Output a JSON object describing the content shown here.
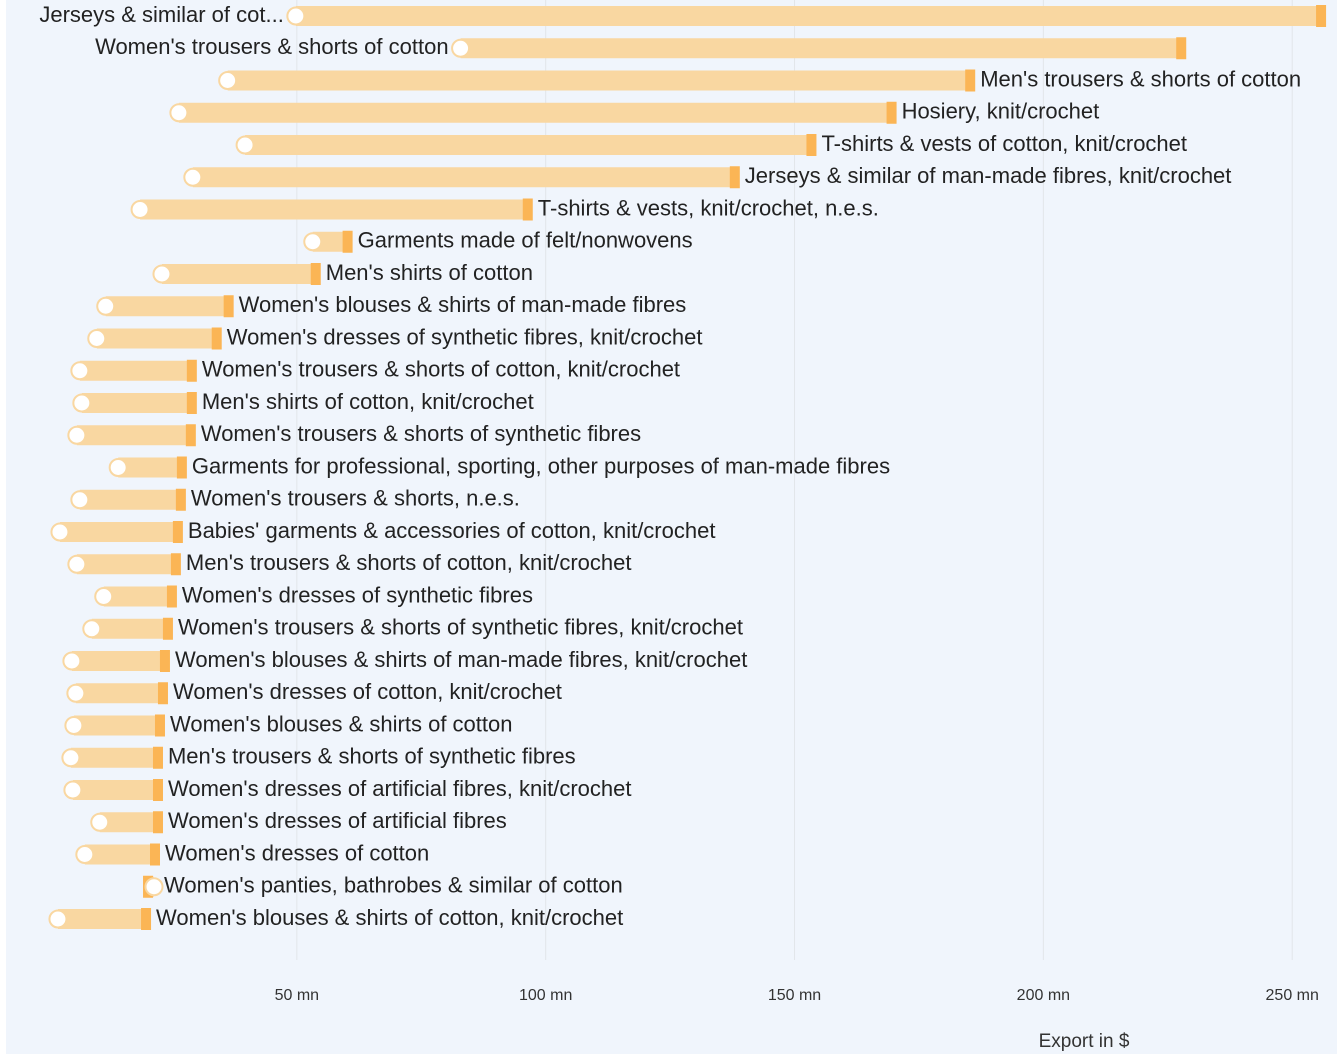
{
  "chart_data": {
    "type": "dumbbell",
    "categories": [
      "Jerseys & similar of cot...",
      "Women's trousers & shorts of cotton",
      "Men's trousers & shorts of cotton",
      "Hosiery, knit/crochet",
      "T-shirts & vests of cotton, knit/crochet",
      "Jerseys & similar of man-made fibres, knit/crochet",
      "T-shirts & vests, knit/crochet, n.e.s.",
      "Garments made of felt/nonwovens",
      "Men's shirts of cotton",
      "Women's blouses & shirts of man-made fibres",
      "Women's dresses of synthetic fibres, knit/crochet",
      "Women's trousers & shorts of cotton, knit/crochet",
      "Men's shirts of cotton, knit/crochet",
      "Women's trousers & shorts of synthetic fibres",
      "Garments for professional, sporting, other purposes of man-made fibres",
      "Women's trousers & shorts, n.e.s.",
      "Babies' garments & accessories of cotton, knit/crochet",
      "Men's trousers & shorts of cotton, knit/crochet",
      "Women's dresses of synthetic fibres",
      "Women's trousers & shorts of synthetic fibres, knit/crochet",
      "Women's blouses & shirts of man-made fibres, knit/crochet",
      "Women's dresses of cotton, knit/crochet",
      "Women's blouses & shirts of cotton",
      "Men's trousers & shorts of synthetic fibres",
      "Women's dresses of artificial fibres, knit/crochet",
      "Women's dresses of artificial fibres",
      "Women's dresses of cotton",
      "Women's panties, bathrobes & similar of cotton",
      "Women's blouses & shirts of cotton, knit/crochet"
    ],
    "start": [
      49.8,
      82.9,
      36.1,
      26.3,
      39.6,
      29.1,
      18.5,
      53.2,
      22.9,
      11.6,
      9.8,
      6.4,
      6.8,
      5.8,
      14.1,
      6.4,
      2.4,
      5.8,
      11.2,
      8.8,
      4.8,
      5.6,
      5.2,
      4.6,
      5.0,
      10.4,
      7.4,
      21.3,
      2.0
    ],
    "end": [
      255.8,
      227.7,
      185.3,
      169.5,
      153.4,
      138.0,
      96.4,
      60.2,
      53.8,
      36.3,
      33.9,
      28.9,
      28.9,
      28.7,
      26.9,
      26.7,
      26.1,
      25.7,
      24.9,
      24.1,
      23.5,
      23.1,
      22.5,
      22.1,
      22.1,
      22.1,
      21.5,
      20.1,
      19.7
    ],
    "xlim": [
      0,
      259
    ],
    "xticks": [
      {
        "value": 50,
        "label": "50 mn"
      },
      {
        "value": 100,
        "label": "100 mn"
      },
      {
        "value": 150,
        "label": "150 mn"
      },
      {
        "value": 200,
        "label": "200 mn"
      },
      {
        "value": 250,
        "label": "250 mn"
      }
    ],
    "x_label": "Export in $",
    "bar_color": "#f9d7a1",
    "end_color": "#fbb555",
    "start_color": "#ffffff",
    "grid": true
  }
}
